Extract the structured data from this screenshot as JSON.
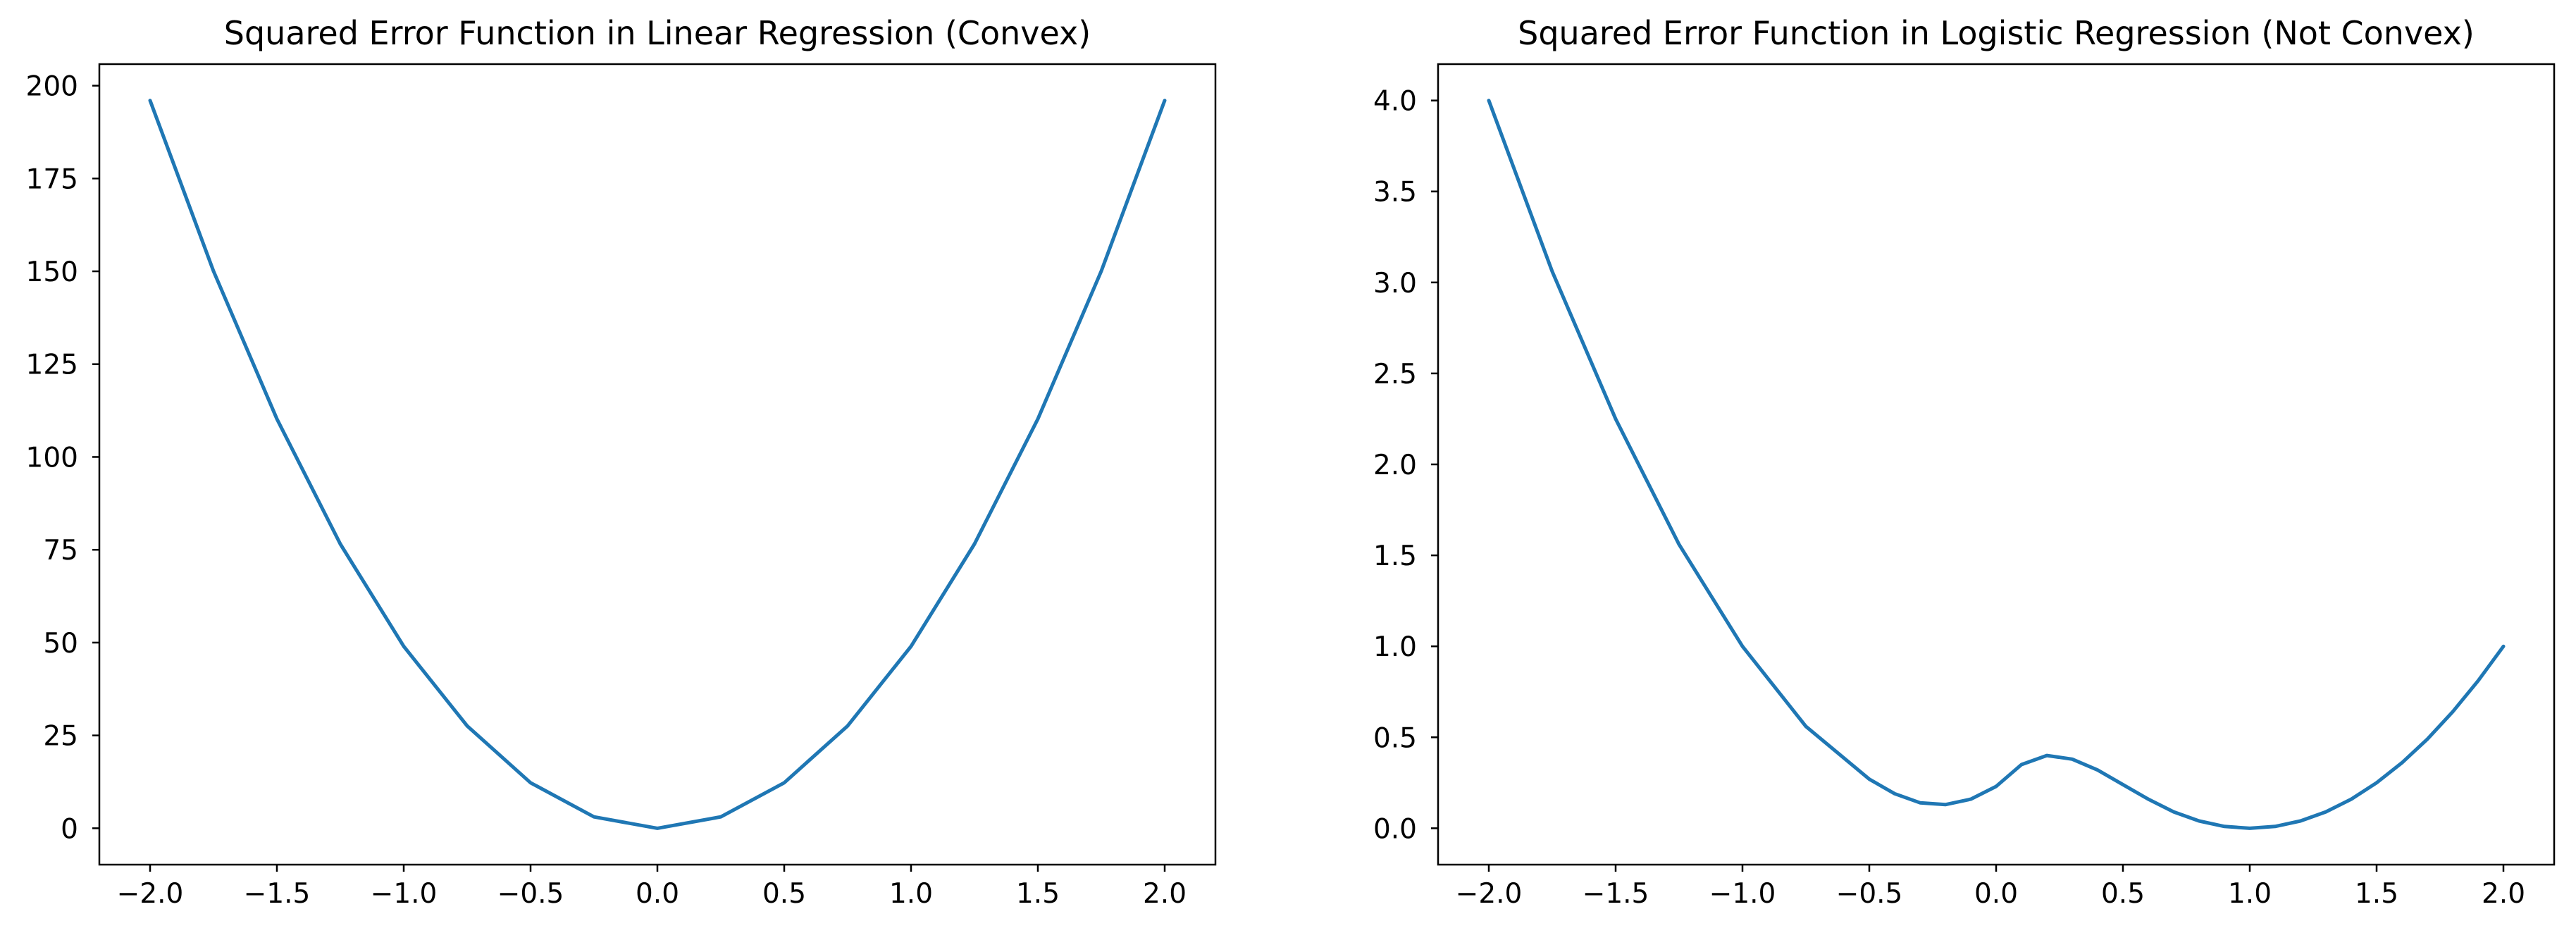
{
  "chart_data": [
    {
      "type": "line",
      "title": "Squared Error Function in Linear Regression (Convex)",
      "xlabel": "",
      "ylabel": "",
      "xlim": [
        -2.2,
        2.2
      ],
      "ylim": [
        -9.8,
        205.8
      ],
      "xticks": [
        -2.0,
        -1.5,
        -1.0,
        -0.5,
        0.0,
        0.5,
        1.0,
        1.5,
        2.0
      ],
      "xtick_labels": [
        "−2.0",
        "−1.5",
        "−1.0",
        "−0.5",
        "0.0",
        "0.5",
        "1.0",
        "1.5",
        "2.0"
      ],
      "yticks": [
        0,
        25,
        50,
        75,
        100,
        125,
        150,
        175,
        200
      ],
      "ytick_labels": [
        "0",
        "25",
        "50",
        "75",
        "100",
        "125",
        "150",
        "175",
        "200"
      ],
      "grid": false,
      "color": "#1f77b4",
      "series": [
        {
          "x": [
            -2.0,
            -1.75,
            -1.5,
            -1.25,
            -1.0,
            -0.75,
            -0.5,
            -0.25,
            0.0,
            0.25,
            0.5,
            0.75,
            1.0,
            1.25,
            1.5,
            1.75,
            2.0
          ],
          "values": [
            196,
            150.06,
            110.25,
            76.56,
            49,
            27.56,
            12.25,
            3.06,
            0,
            3.06,
            12.25,
            27.56,
            49,
            76.56,
            110.25,
            150.06,
            196
          ]
        }
      ]
    },
    {
      "type": "line",
      "title": "Squared Error Function in Logistic Regression (Not Convex)",
      "xlabel": "",
      "ylabel": "",
      "xlim": [
        -2.2,
        2.2
      ],
      "ylim": [
        -0.2,
        4.2
      ],
      "xticks": [
        -2.0,
        -1.5,
        -1.0,
        -0.5,
        0.0,
        0.5,
        1.0,
        1.5,
        2.0
      ],
      "xtick_labels": [
        "−2.0",
        "−1.5",
        "−1.0",
        "−0.5",
        "0.0",
        "0.5",
        "1.0",
        "1.5",
        "2.0"
      ],
      "yticks": [
        0.0,
        0.5,
        1.0,
        1.5,
        2.0,
        2.5,
        3.0,
        3.5,
        4.0
      ],
      "ytick_labels": [
        "0.0",
        "0.5",
        "1.0",
        "1.5",
        "2.0",
        "2.5",
        "3.0",
        "3.5",
        "4.0"
      ],
      "grid": false,
      "color": "#1f77b4",
      "series": [
        {
          "x": [
            -2.0,
            -1.75,
            -1.5,
            -1.25,
            -1.0,
            -0.75,
            -0.5,
            -0.4,
            -0.3,
            -0.2,
            -0.1,
            0.0,
            0.1,
            0.2,
            0.3,
            0.4,
            0.5,
            0.6,
            0.7,
            0.8,
            0.9,
            1.0,
            1.1,
            1.2,
            1.3,
            1.4,
            1.5,
            1.6,
            1.7,
            1.8,
            1.9,
            2.0
          ],
          "values": [
            4.0,
            3.06,
            2.25,
            1.56,
            1.0,
            0.56,
            0.27,
            0.19,
            0.14,
            0.13,
            0.16,
            0.23,
            0.35,
            0.4,
            0.38,
            0.32,
            0.24,
            0.16,
            0.09,
            0.04,
            0.01,
            0.0,
            0.01,
            0.04,
            0.09,
            0.16,
            0.25,
            0.36,
            0.49,
            0.64,
            0.81,
            1.0
          ]
        }
      ]
    }
  ]
}
